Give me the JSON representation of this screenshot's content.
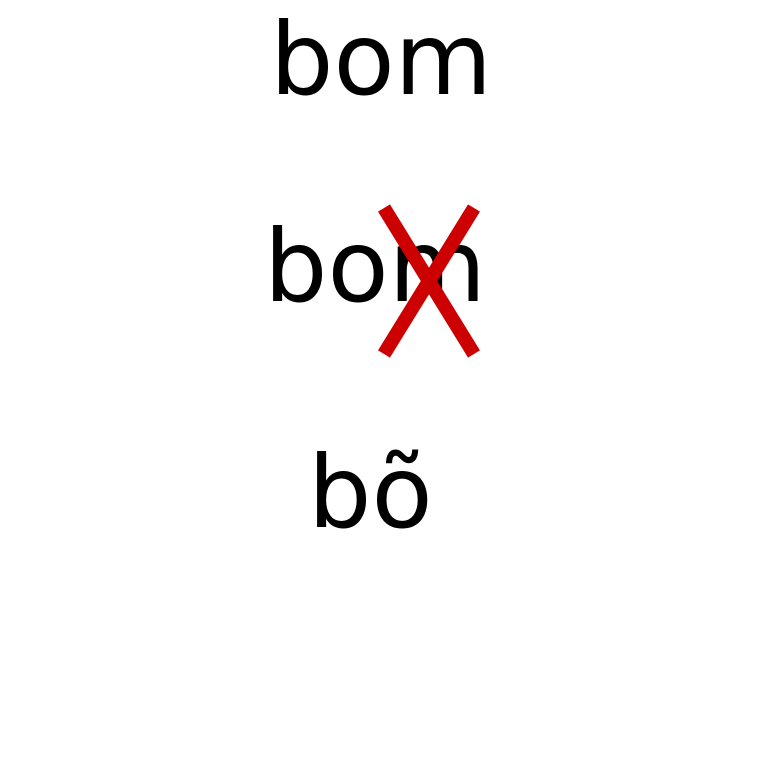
{
  "words": {
    "top": "bom",
    "middle": "bom",
    "bottom": "bõ"
  },
  "cross": {
    "icon": "x-mark-icon",
    "color": "#cc0000"
  }
}
